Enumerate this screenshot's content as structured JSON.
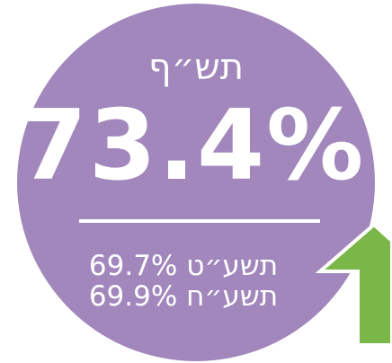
{
  "title": "תש״ף",
  "main_value": "73.4%",
  "comparisons": [
    "תשע״ט 69.7%",
    "תשע״ח 69.9%"
  ]
}
